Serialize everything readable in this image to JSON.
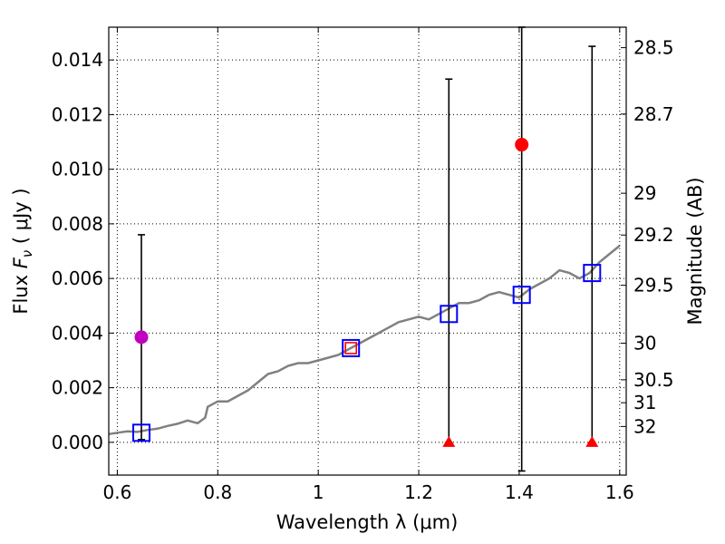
{
  "chart_data": {
    "type": "scatter",
    "xlabel": "Wavelength  λ (μm)",
    "ylabel": "Flux  F_ν  ( μJy )",
    "ylabel_parts": {
      "prefix": "Flux ",
      "symbol": "F",
      "subscript": "ν",
      "unit": " ( μJy )"
    },
    "y2label": "Magnitude (AB)",
    "xlim": [
      0.583,
      1.613
    ],
    "ylim": [
      -0.0012,
      0.0152
    ],
    "grid": true,
    "x_ticks": [
      0.6,
      0.8,
      1.0,
      1.2,
      1.4,
      1.6
    ],
    "x_tick_labels": [
      "0.6",
      "0.8",
      "1",
      "1.2",
      "1.4",
      "1.6"
    ],
    "y_ticks": [
      0.0,
      0.002,
      0.004,
      0.006,
      0.008,
      0.01,
      0.012,
      0.014
    ],
    "y_tick_labels": [
      "0.000",
      "0.002",
      "0.004",
      "0.006",
      "0.008",
      "0.010",
      "0.012",
      "0.014"
    ],
    "y2_ticks": [
      {
        "label": "28.5",
        "flux": 0.01445
      },
      {
        "label": "28.7",
        "flux": 0.01202
      },
      {
        "label": "29",
        "flux": 0.00912
      },
      {
        "label": "29.2",
        "flux": 0.00759
      },
      {
        "label": "29.5",
        "flux": 0.00575
      },
      {
        "label": "30",
        "flux": 0.00363
      },
      {
        "label": "30.5",
        "flux": 0.00229
      },
      {
        "label": "31",
        "flux": 0.00145
      },
      {
        "label": "32",
        "flux": 0.00058
      }
    ],
    "series": [
      {
        "kind": "line",
        "color": "#808080",
        "x": [
          0.583,
          0.6,
          0.62,
          0.64,
          0.66,
          0.68,
          0.7,
          0.72,
          0.74,
          0.76,
          0.775,
          0.78,
          0.8,
          0.82,
          0.84,
          0.86,
          0.88,
          0.9,
          0.92,
          0.94,
          0.96,
          0.98,
          1.0,
          1.02,
          1.04,
          1.06,
          1.08,
          1.1,
          1.12,
          1.14,
          1.16,
          1.18,
          1.2,
          1.22,
          1.24,
          1.26,
          1.28,
          1.3,
          1.32,
          1.34,
          1.36,
          1.38,
          1.4,
          1.42,
          1.44,
          1.46,
          1.48,
          1.5,
          1.52,
          1.54,
          1.56,
          1.58,
          1.6
        ],
        "y": [
          0.0003,
          0.00035,
          0.0004,
          0.00038,
          0.00045,
          0.0005,
          0.0006,
          0.00068,
          0.0008,
          0.0007,
          0.0009,
          0.0013,
          0.0015,
          0.0015,
          0.0017,
          0.0019,
          0.0022,
          0.0025,
          0.0026,
          0.0028,
          0.0029,
          0.0029,
          0.003,
          0.0031,
          0.0032,
          0.0034,
          0.0036,
          0.0038,
          0.004,
          0.0042,
          0.0044,
          0.0045,
          0.0046,
          0.0045,
          0.0047,
          0.0049,
          0.0051,
          0.0051,
          0.0052,
          0.0054,
          0.0055,
          0.0054,
          0.0053,
          0.0056,
          0.0058,
          0.006,
          0.0063,
          0.0062,
          0.006,
          0.0062,
          0.0066,
          0.0069,
          0.0072
        ]
      },
      {
        "kind": "errorbar",
        "color": "#000000",
        "points": [
          {
            "x": 0.648,
            "low": 0.0001,
            "high": 0.0076
          },
          {
            "x": 1.26,
            "low": 0.0,
            "high": 0.0133
          },
          {
            "x": 1.405,
            "low": -0.00105,
            "high": 0.0152
          },
          {
            "x": 1.545,
            "low": 0.0,
            "high": 0.0145
          }
        ]
      },
      {
        "kind": "markers",
        "marker": "open-square",
        "color": "#0000ff",
        "x": [
          0.648,
          1.065,
          1.26,
          1.405,
          1.545
        ],
        "y": [
          0.00035,
          0.00345,
          0.0047,
          0.0054,
          0.0062
        ]
      },
      {
        "kind": "markers",
        "marker": "small-open-square",
        "color": "#ff0000",
        "x": [
          1.065
        ],
        "y": [
          0.00345
        ]
      },
      {
        "kind": "markers",
        "marker": "filled-circle",
        "color": "#c000c0",
        "x": [
          0.648
        ],
        "y": [
          0.00385
        ]
      },
      {
        "kind": "markers",
        "marker": "filled-circle",
        "color": "#ff0000",
        "x": [
          1.405
        ],
        "y": [
          0.0109
        ]
      },
      {
        "kind": "markers",
        "marker": "filled-triangle",
        "color": "#ff0000",
        "x": [
          1.26,
          1.545
        ],
        "y": [
          0.0,
          0.0
        ]
      }
    ]
  }
}
